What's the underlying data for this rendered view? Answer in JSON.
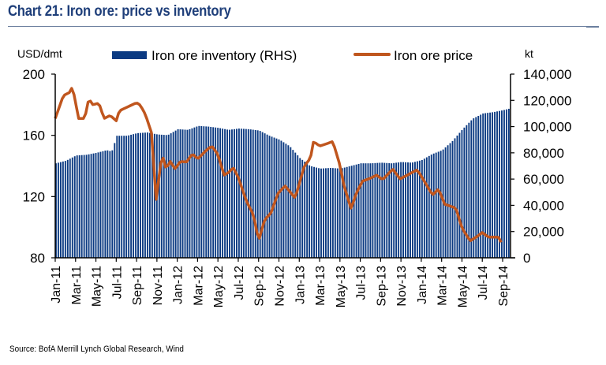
{
  "title": "Chart 21: Iron ore: price vs inventory",
  "source": "Source: BofA Merrill Lynch Global Research, Wind",
  "colors": {
    "inventory": "#0b3a82",
    "price": "#c0561e",
    "title": "#1f3f7a"
  },
  "chart_data": {
    "type": "bar+line",
    "title": "Chart 21: Iron ore: price vs inventory",
    "left_axis": {
      "label": "USD/dmt",
      "ticks": [
        "80",
        "120",
        "160",
        "200"
      ],
      "range": [
        80,
        200
      ]
    },
    "right_axis": {
      "label": "kt",
      "ticks": [
        "0",
        "20,000",
        "40,000",
        "60,000",
        "80,000",
        "100,000",
        "120,000",
        "140,000"
      ],
      "range": [
        0,
        140000
      ]
    },
    "x_ticks": [
      "Jan-11",
      "Mar-11",
      "May-11",
      "Jul-11",
      "Sep-11",
      "Nov-11",
      "Jan-12",
      "Mar-12",
      "May-12",
      "Jul-12",
      "Sep-12",
      "Nov-12",
      "Jan-13",
      "Mar-13",
      "May-13",
      "Jul-13",
      "Sep-13",
      "Nov-13",
      "Jan-14",
      "Mar-14",
      "May-14",
      "Jul-14",
      "Sep-14"
    ],
    "x_range_months": [
      0,
      44
    ],
    "legend": [
      {
        "name": "Iron ore inventory (RHS)",
        "type": "bar"
      },
      {
        "name": "Iron ore price",
        "type": "line"
      }
    ],
    "series": [
      {
        "name": "Iron ore inventory (RHS)",
        "axis": "right",
        "frequency": "weekly",
        "key_points_month_value": [
          [
            0,
            72000
          ],
          [
            1,
            74000
          ],
          [
            2,
            78000
          ],
          [
            3,
            78500
          ],
          [
            4,
            80000
          ],
          [
            5,
            82000
          ],
          [
            5.5,
            81000
          ],
          [
            6,
            93000
          ],
          [
            7,
            93000
          ],
          [
            8,
            95000
          ],
          [
            9,
            95500
          ],
          [
            10,
            94000
          ],
          [
            11,
            93500
          ],
          [
            12,
            98000
          ],
          [
            13,
            97500
          ],
          [
            14,
            100500
          ],
          [
            15,
            100000
          ],
          [
            16,
            99000
          ],
          [
            17,
            97500
          ],
          [
            18,
            98500
          ],
          [
            19,
            98000
          ],
          [
            20,
            97000
          ],
          [
            21,
            93000
          ],
          [
            22,
            90000
          ],
          [
            23,
            85000
          ],
          [
            24,
            76000
          ],
          [
            25,
            70000
          ],
          [
            26,
            68000
          ],
          [
            27,
            68500
          ],
          [
            28,
            68000
          ],
          [
            29,
            70000
          ],
          [
            30,
            72000
          ],
          [
            31,
            72000
          ],
          [
            32,
            72500
          ],
          [
            33,
            72000
          ],
          [
            34,
            73000
          ],
          [
            35,
            72500
          ],
          [
            36,
            74500
          ],
          [
            37,
            79000
          ],
          [
            38,
            82000
          ],
          [
            39,
            89000
          ],
          [
            40,
            98000
          ],
          [
            41,
            106000
          ],
          [
            42,
            110000
          ],
          [
            43,
            111000
          ],
          [
            44,
            112500
          ],
          [
            45,
            114500
          ],
          [
            46,
            116000
          ],
          [
            47,
            114500
          ],
          [
            48,
            112000
          ]
        ]
      },
      {
        "name": "Iron ore price",
        "axis": "left",
        "frequency": "weekly",
        "key_points_month_value": [
          [
            0,
            171
          ],
          [
            0.8,
            186
          ],
          [
            1.4,
            188
          ],
          [
            1.7,
            191.7
          ],
          [
            2.3,
            171
          ],
          [
            2.9,
            171
          ],
          [
            3.3,
            184
          ],
          [
            3.7,
            180
          ],
          [
            4.3,
            181
          ],
          [
            4.8,
            171
          ],
          [
            5.4,
            173
          ],
          [
            6.0,
            169.5
          ],
          [
            6.3,
            176
          ],
          [
            7.1,
            178.5
          ],
          [
            7.9,
            181
          ],
          [
            8.2,
            181
          ],
          [
            8.7,
            176
          ],
          [
            9.0,
            171
          ],
          [
            9.5,
            161
          ],
          [
            9.9,
            117
          ],
          [
            10.5,
            148
          ],
          [
            10.9,
            138
          ],
          [
            11.3,
            143
          ],
          [
            11.8,
            138
          ],
          [
            12.3,
            143
          ],
          [
            12.9,
            142.5
          ],
          [
            13.5,
            148
          ],
          [
            14.0,
            144.5
          ],
          [
            14.9,
            150.5
          ],
          [
            15.4,
            153
          ],
          [
            16.0,
            147.5
          ],
          [
            16.6,
            134
          ],
          [
            17.1,
            136
          ],
          [
            17.5,
            139
          ],
          [
            18.0,
            132.5
          ],
          [
            18.8,
            117
          ],
          [
            19.5,
            108
          ],
          [
            20.0,
            91
          ],
          [
            20.6,
            105
          ],
          [
            21.2,
            109
          ],
          [
            21.9,
            122
          ],
          [
            22.6,
            127
          ],
          [
            23.6,
            119
          ],
          [
            24.5,
            140
          ],
          [
            25.1,
            145
          ],
          [
            25.4,
            156
          ],
          [
            26.0,
            153
          ],
          [
            26.7,
            154.5
          ],
          [
            27.3,
            156
          ],
          [
            28.0,
            140.5
          ],
          [
            28.4,
            127
          ],
          [
            29.1,
            112
          ],
          [
            29.6,
            122
          ],
          [
            30.2,
            130
          ],
          [
            31.0,
            132
          ],
          [
            31.6,
            134
          ],
          [
            32.2,
            131
          ],
          [
            33.2,
            138
          ],
          [
            33.9,
            131.5
          ],
          [
            34.9,
            135
          ],
          [
            35.6,
            137.5
          ],
          [
            36.3,
            130
          ],
          [
            37.1,
            121
          ],
          [
            37.7,
            125
          ],
          [
            38.3,
            115
          ],
          [
            39.4,
            112.5
          ],
          [
            40.0,
            99.5
          ],
          [
            40.8,
            91
          ],
          [
            41.4,
            93.5
          ],
          [
            42.0,
            96.5
          ],
          [
            42.6,
            93.5
          ],
          [
            43.6,
            93.5
          ],
          [
            44,
            88
          ]
        ]
      }
    ]
  }
}
